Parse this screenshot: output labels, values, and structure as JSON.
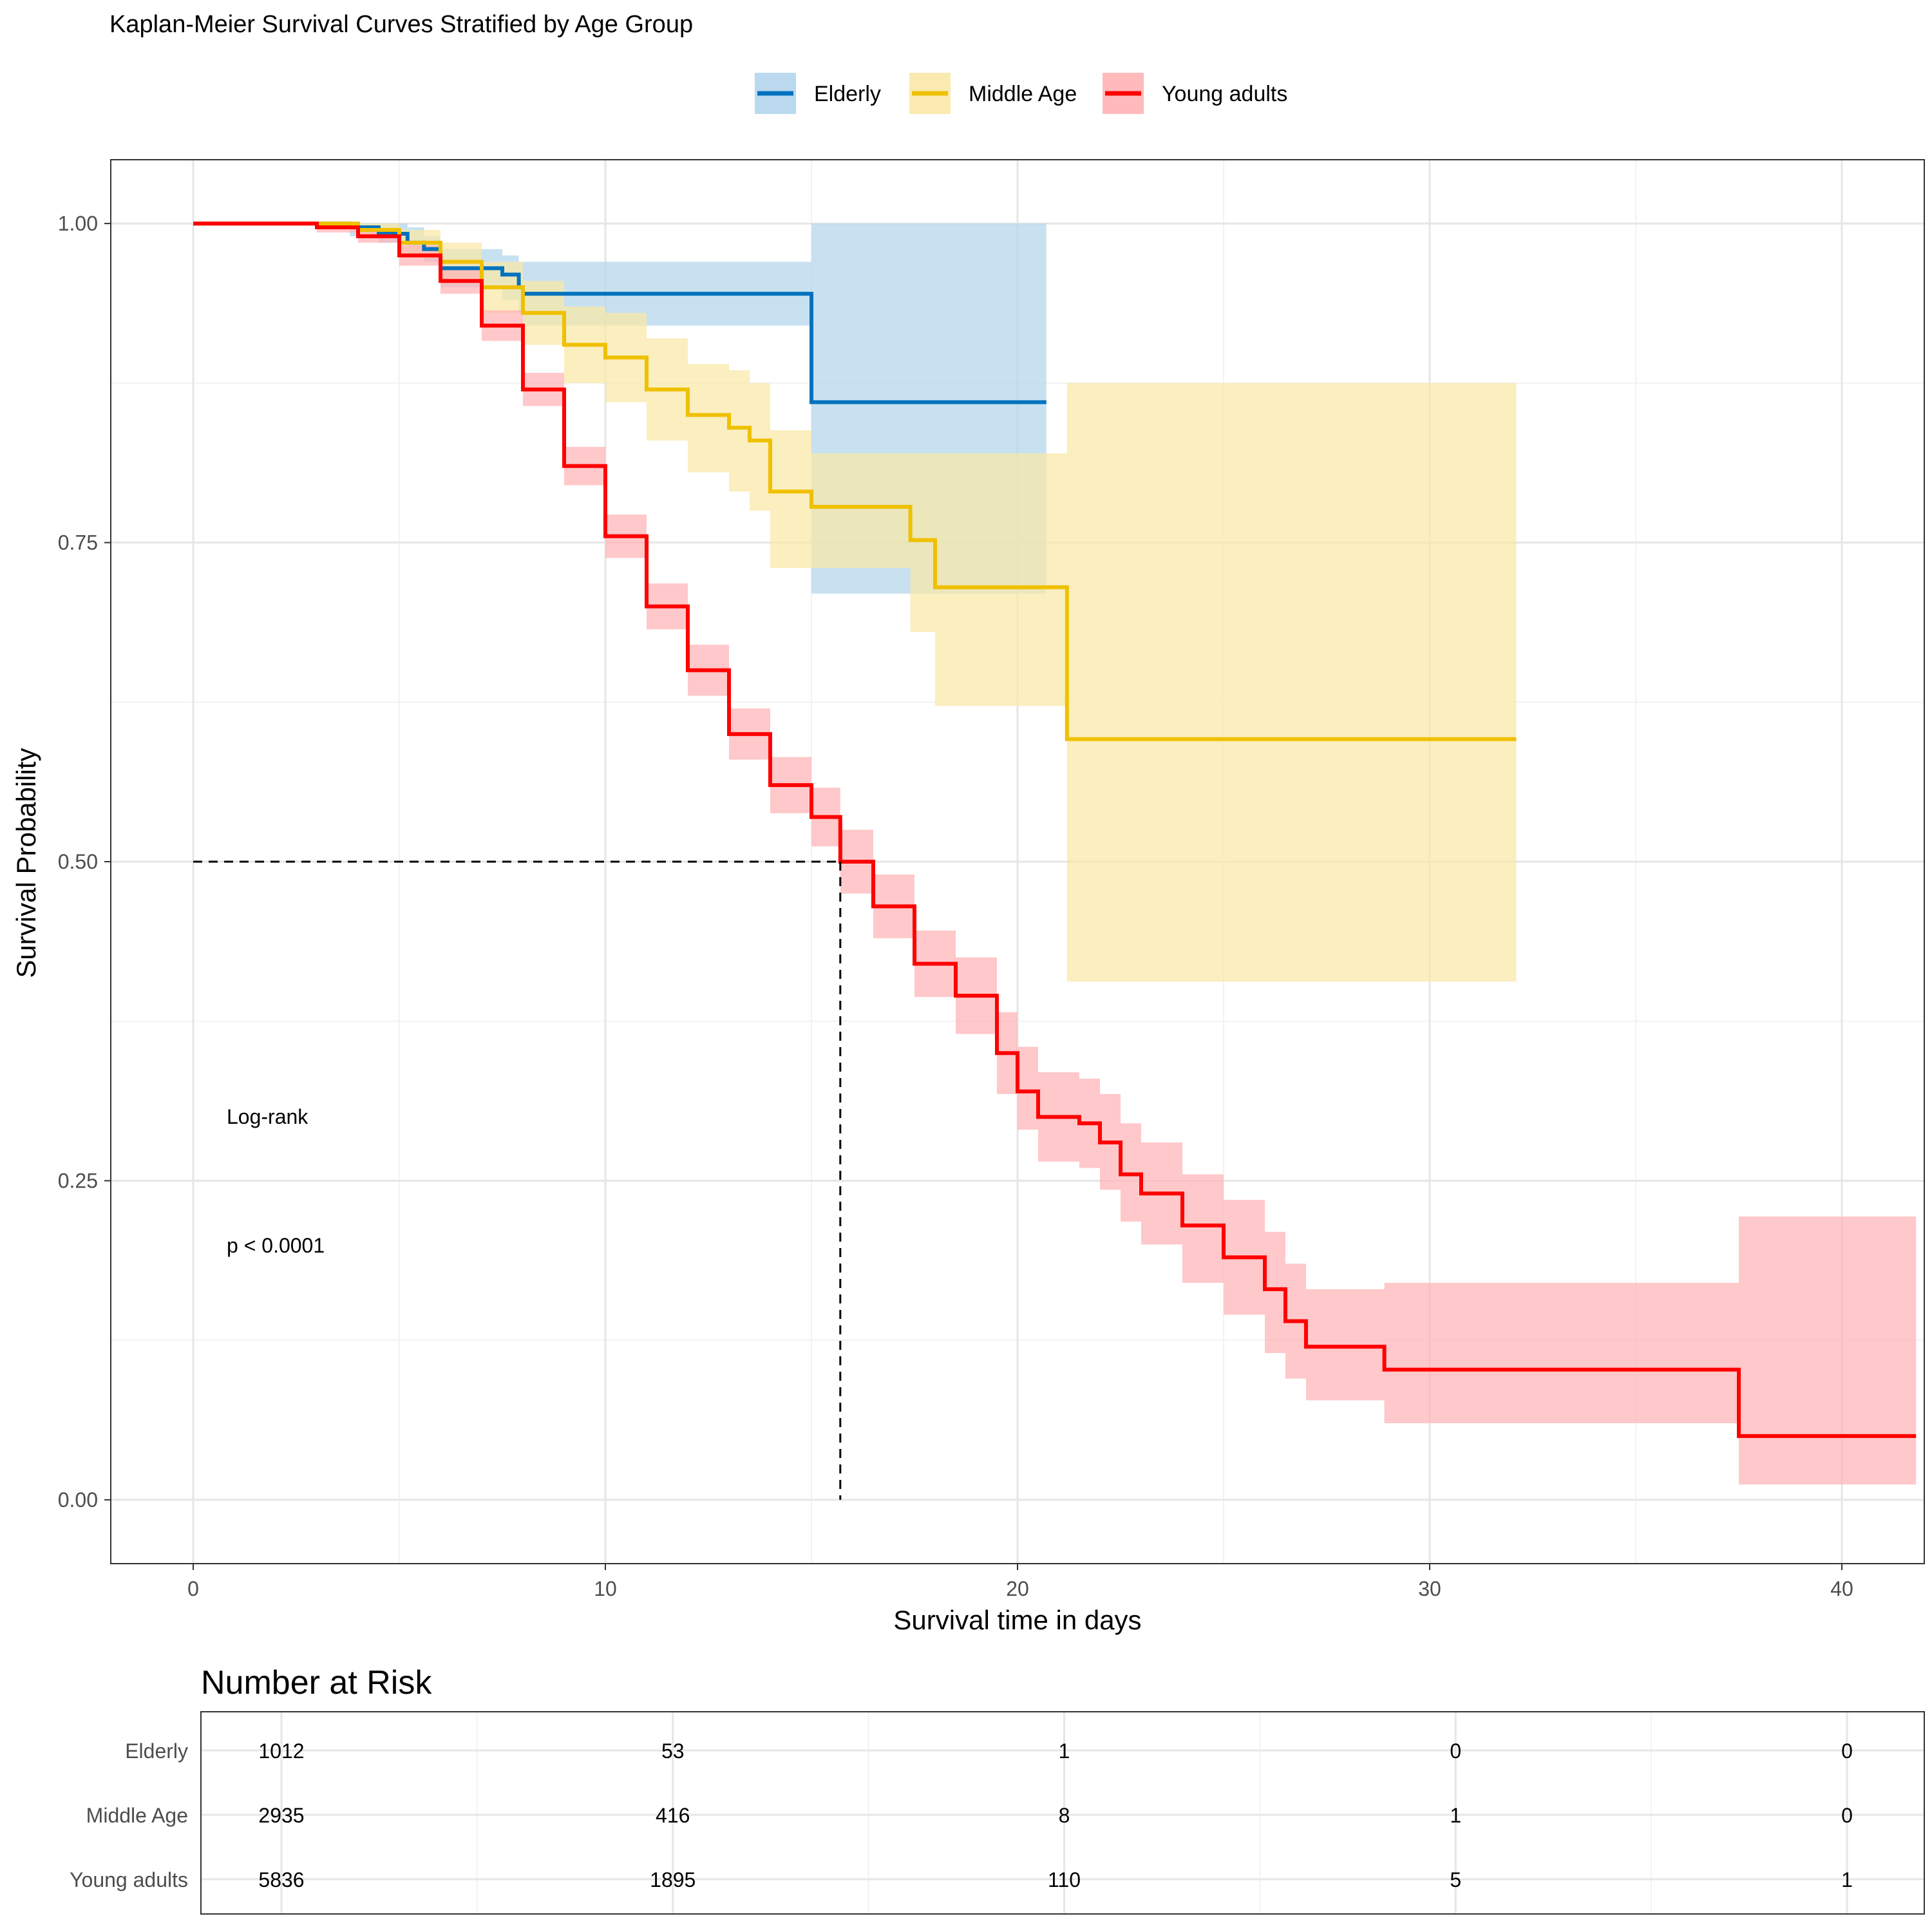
{
  "chart_data": {
    "type": "line",
    "title": "Kaplan-Meier Survival Curves Stratified by Age Group",
    "xlabel": "Survival time in days",
    "ylabel": "Survival Probability",
    "xlim": [
      -2,
      42
    ],
    "ylim": [
      -0.05,
      1.05
    ],
    "x_ticks": [
      0,
      10,
      20,
      30,
      40
    ],
    "x_tick_labels": [
      "0",
      "10",
      "20",
      "30",
      "40"
    ],
    "y_ticks": [
      0,
      0.25,
      0.5,
      0.75,
      1.0
    ],
    "y_tick_labels": [
      "0.00",
      "0.25",
      "0.50",
      "0.75",
      "1.00"
    ],
    "grid": true,
    "legend_position": "top",
    "median_line": {
      "x": 15.7,
      "y": 0.5
    },
    "annotation": {
      "line1": "Log-rank",
      "line2": "p < 0.0001"
    },
    "series": [
      {
        "name": "Elderly",
        "color": "#0072BD",
        "band_color": "#B3D5EC",
        "x": [
          0,
          3.2,
          3.8,
          4.5,
          5.2,
          5.6,
          6.0,
          7.5,
          7.9,
          8.0,
          15.0,
          20.7
        ],
        "y": [
          1.0,
          1.0,
          0.997,
          0.992,
          0.985,
          0.98,
          0.965,
          0.96,
          0.95,
          0.945,
          0.86,
          0.86
        ],
        "lower": [
          1.0,
          1.0,
          0.99,
          0.985,
          0.975,
          0.97,
          0.95,
          0.94,
          0.93,
          0.92,
          0.71,
          0.71
        ],
        "upper": [
          1.0,
          1.0,
          1.0,
          1.0,
          0.997,
          0.99,
          0.98,
          0.975,
          0.97,
          0.97,
          1.0,
          1.0
        ]
      },
      {
        "name": "Middle Age",
        "color": "#EFC000",
        "band_color": "#F9E8A6",
        "x": [
          0,
          3.0,
          4.0,
          5.0,
          6.0,
          7.0,
          8.0,
          9.0,
          10.0,
          11.0,
          12.0,
          13.0,
          13.5,
          14.0,
          15.0,
          17.4,
          18.0,
          21.2,
          32.1
        ],
        "y": [
          1.0,
          1.0,
          0.995,
          0.985,
          0.97,
          0.95,
          0.93,
          0.905,
          0.895,
          0.87,
          0.85,
          0.84,
          0.83,
          0.79,
          0.778,
          0.752,
          0.715,
          0.596,
          0.596
        ],
        "lower": [
          1.0,
          1.0,
          0.99,
          0.975,
          0.955,
          0.93,
          0.905,
          0.875,
          0.86,
          0.83,
          0.805,
          0.79,
          0.775,
          0.73,
          0.73,
          0.68,
          0.622,
          0.406,
          0.406
        ],
        "upper": [
          1.0,
          1.0,
          1.0,
          0.995,
          0.985,
          0.97,
          0.955,
          0.935,
          0.93,
          0.91,
          0.89,
          0.885,
          0.875,
          0.838,
          0.82,
          0.82,
          0.82,
          0.875,
          0.875
        ]
      },
      {
        "name": "Young adults",
        "color": "#FF0000",
        "band_color": "#FFB3B5",
        "x": [
          0,
          2.0,
          3.0,
          4.0,
          5.0,
          6.0,
          7.0,
          8.0,
          9.0,
          10.0,
          11.0,
          12.0,
          13.0,
          14.0,
          15.0,
          15.7,
          16.5,
          17.5,
          18.5,
          19.5,
          20.0,
          20.5,
          21.5,
          22.0,
          22.5,
          23.0,
          24.0,
          25.0,
          26.0,
          26.5,
          27.0,
          28.9,
          37.5,
          41.8
        ],
        "y": [
          1.0,
          1.0,
          0.997,
          0.99,
          0.975,
          0.955,
          0.92,
          0.87,
          0.81,
          0.755,
          0.7,
          0.65,
          0.6,
          0.56,
          0.535,
          0.5,
          0.465,
          0.42,
          0.395,
          0.35,
          0.32,
          0.3,
          0.295,
          0.28,
          0.255,
          0.24,
          0.215,
          0.19,
          0.165,
          0.14,
          0.12,
          0.102,
          0.05,
          0.05
        ],
        "lower": [
          1.0,
          1.0,
          0.993,
          0.985,
          0.967,
          0.945,
          0.908,
          0.857,
          0.795,
          0.738,
          0.682,
          0.63,
          0.58,
          0.538,
          0.512,
          0.475,
          0.44,
          0.394,
          0.365,
          0.318,
          0.29,
          0.265,
          0.26,
          0.243,
          0.218,
          0.2,
          0.17,
          0.145,
          0.115,
          0.095,
          0.078,
          0.06,
          0.012,
          0.012
        ],
        "upper": [
          1.0,
          1.0,
          1.0,
          0.995,
          0.983,
          0.965,
          0.932,
          0.883,
          0.825,
          0.772,
          0.718,
          0.67,
          0.62,
          0.582,
          0.558,
          0.525,
          0.49,
          0.446,
          0.425,
          0.382,
          0.355,
          0.335,
          0.33,
          0.318,
          0.295,
          0.28,
          0.255,
          0.235,
          0.21,
          0.185,
          0.165,
          0.17,
          0.222,
          0.222
        ]
      }
    ]
  },
  "risk_table": {
    "title": "Number at Risk",
    "times": [
      0,
      10,
      20,
      30,
      40
    ],
    "rows": [
      {
        "label": "Elderly",
        "values": [
          "1012",
          "53",
          "1",
          "0",
          "0"
        ]
      },
      {
        "label": "Middle Age",
        "values": [
          "2935",
          "416",
          "8",
          "1",
          "0"
        ]
      },
      {
        "label": "Young adults",
        "values": [
          "5836",
          "1895",
          "110",
          "5",
          "1"
        ]
      }
    ]
  }
}
